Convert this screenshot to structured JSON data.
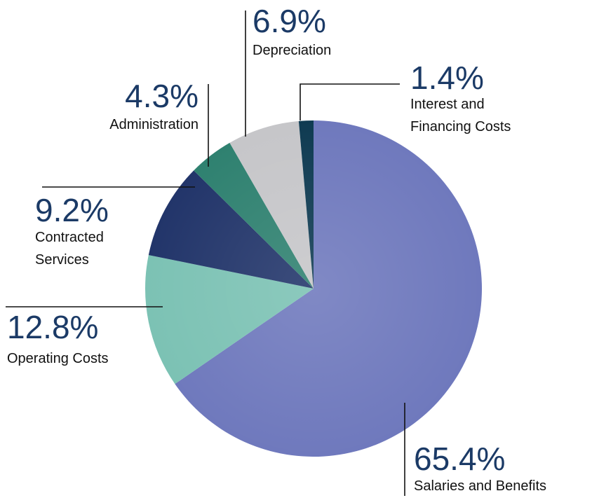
{
  "chart_data": {
    "type": "pie",
    "categories": [
      "Salaries and Benefits",
      "Operating Costs",
      "Contracted Services",
      "Administration",
      "Depreciation",
      "Interest and Financing Costs"
    ],
    "values": [
      65.4,
      12.8,
      9.2,
      4.3,
      6.9,
      1.4
    ],
    "value_labels": [
      "65.4%",
      "12.8%",
      "9.2%",
      "4.3%",
      "6.9%",
      "1.4%"
    ],
    "colors": [
      "#6f79bd",
      "#7cc2b4",
      "#22356a",
      "#2f8170",
      "#c6c6c9",
      "#0f3b52"
    ]
  }
}
